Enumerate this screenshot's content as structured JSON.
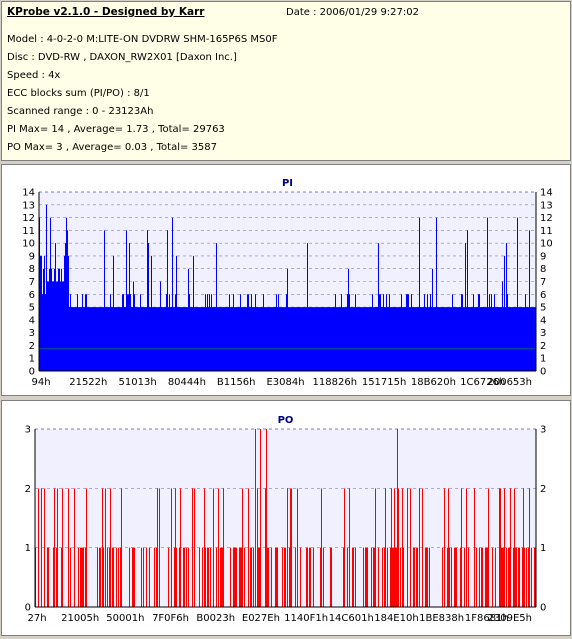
{
  "header": {
    "title": "KProbe v2.1.0 - Designed by Karr",
    "date": "Date : 2006/01/29 9:27:02",
    "model": "Model : 4-0-2-0 M:LITE-ON DVDRW SHM-165P6S MS0F",
    "disc": "Disc : DVD-RW , DAXON_RW2X01 [Daxon Inc.]",
    "speed": "Speed : 4x",
    "ecc": "ECC blocks sum (PI/PO) : 8/1",
    "range": "Scanned range : 0 - 23123Ah",
    "pi_stats": "PI Max= 14 , Average= 1.73 , Total= 29763",
    "po_stats": "PO Max= 3 , Average= 0.03 , Total= 3587"
  },
  "colors": {
    "pi": "#0000ff",
    "po": "#ff0000",
    "avg": "#00c000",
    "grid": "#000080"
  },
  "chart_data": [
    {
      "type": "bar",
      "title": "PI",
      "ylim": [
        0,
        14
      ],
      "yticks": [
        "0",
        "1",
        "2",
        "3",
        "4",
        "5",
        "6",
        "7",
        "8",
        "9",
        "10",
        "11",
        "12",
        "13",
        "14"
      ],
      "xtick_labels": [
        "94h",
        "21522h",
        "51013h",
        "80444h",
        "B1156h",
        "E3084h",
        "118826h",
        "151715h",
        "18B620h",
        "1C6726h",
        "200653h"
      ],
      "grid": true,
      "series_stats": {
        "max": 14,
        "average": 1.73,
        "total": 29763
      }
    },
    {
      "type": "bar",
      "title": "PO",
      "ylim": [
        0,
        3
      ],
      "yticks": [
        "0",
        "1",
        "2",
        "3"
      ],
      "xtick_labels": [
        "27h",
        "21005h",
        "50001h",
        "7F0F6h",
        "B0023h",
        "E027Eh",
        "1140F1h",
        "14C601h",
        "184E10h",
        "1BE838h",
        "1F8681h",
        "2309E5h"
      ],
      "grid": true,
      "series_stats": {
        "max": 3,
        "average": 0.03,
        "total": 3587
      }
    }
  ]
}
